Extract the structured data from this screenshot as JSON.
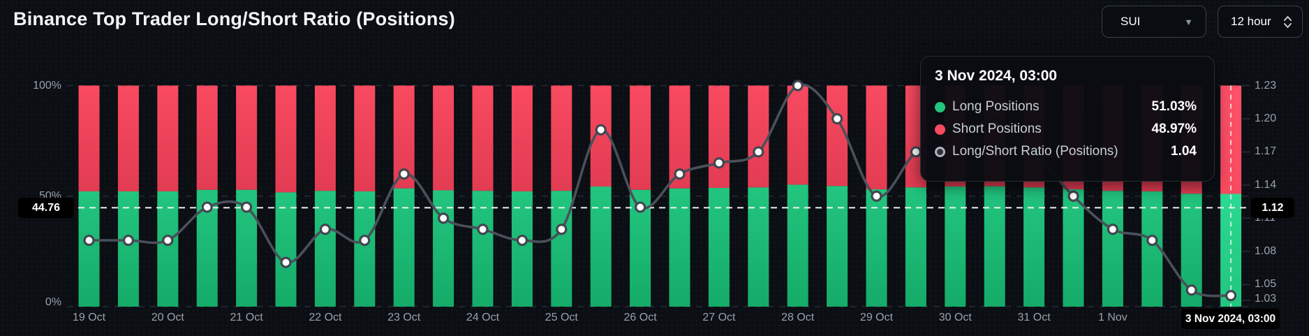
{
  "header": {
    "title": "Binance Top Trader Long/Short Ratio (Positions)",
    "symbol_select": {
      "value": "SUI"
    },
    "interval_select": {
      "value": "12 hour"
    }
  },
  "tooltip": {
    "date": "3 Nov 2024, 03:00",
    "rows": [
      {
        "label": "Long Positions",
        "value": "51.03%",
        "marker_color": "#22c57f",
        "marker_style": "solid",
        "icon": "long-positions-dot-icon"
      },
      {
        "label": "Short Positions",
        "value": "48.97%",
        "marker_color": "#f84a60",
        "marker_style": "solid",
        "icon": "short-positions-dot-icon"
      },
      {
        "label": "Long/Short Ratio (Positions)",
        "value": "1.04",
        "marker_color": "#aeb4bd",
        "marker_style": "ring",
        "icon": "ratio-dot-icon"
      }
    ]
  },
  "colors": {
    "long": "#22c57f",
    "long_bottom": "#15ab69",
    "short": "#f84a60",
    "short_bottom": "#e23c53",
    "ratio_line": "#4a505a",
    "dot_fill": "#ffffff",
    "dot_stroke": "#42474f",
    "axis_text": "#9ba1ac",
    "grid": "#272c34",
    "crosshair": "#eef0f2",
    "pill_bg": "#000000",
    "background": "#0b0e13"
  },
  "chart_data": {
    "type": "stacked-bar+line",
    "title": "Binance Top Trader Long/Short Ratio (Positions)",
    "interval": "12 hour",
    "symbol": "SUI",
    "day_ticks": [
      {
        "i": 0,
        "label": "19 Oct"
      },
      {
        "i": 2,
        "label": "20 Oct"
      },
      {
        "i": 4,
        "label": "21 Oct"
      },
      {
        "i": 6,
        "label": "22 Oct"
      },
      {
        "i": 8,
        "label": "23 Oct"
      },
      {
        "i": 10,
        "label": "24 Oct"
      },
      {
        "i": 12,
        "label": "25 Oct"
      },
      {
        "i": 14,
        "label": "26 Oct"
      },
      {
        "i": 16,
        "label": "27 Oct"
      },
      {
        "i": 18,
        "label": "28 Oct"
      },
      {
        "i": 20,
        "label": "29 Oct"
      },
      {
        "i": 22,
        "label": "30 Oct"
      },
      {
        "i": 24,
        "label": "31 Oct"
      },
      {
        "i": 26,
        "label": "1 Nov"
      }
    ],
    "series": [
      {
        "name": "Long Positions",
        "unit": "%",
        "axis": "left",
        "values": [
          52.15,
          52.15,
          52.15,
          52.83,
          52.83,
          51.69,
          52.38,
          52.15,
          53.49,
          52.61,
          52.38,
          52.15,
          52.38,
          54.34,
          52.83,
          53.49,
          53.7,
          53.92,
          55.16,
          54.55,
          53.05,
          53.92,
          54.34,
          54.44,
          53.92,
          53.05,
          52.38,
          52.15,
          51.1,
          51.03
        ]
      },
      {
        "name": "Short Positions",
        "unit": "%",
        "axis": "left",
        "values": [
          47.85,
          47.85,
          47.85,
          47.17,
          47.17,
          48.31,
          47.62,
          47.85,
          46.51,
          47.39,
          47.62,
          47.85,
          47.62,
          45.66,
          47.17,
          46.51,
          46.3,
          46.08,
          44.84,
          45.45,
          46.95,
          46.08,
          45.66,
          45.56,
          46.08,
          46.95,
          47.62,
          47.85,
          48.9,
          48.97
        ]
      },
      {
        "name": "Long/Short Ratio (Positions)",
        "axis": "right",
        "values": [
          1.09,
          1.09,
          1.09,
          1.12,
          1.12,
          1.07,
          1.1,
          1.09,
          1.15,
          1.11,
          1.1,
          1.09,
          1.1,
          1.19,
          1.12,
          1.15,
          1.16,
          1.17,
          1.23,
          1.2,
          1.13,
          1.17,
          1.19,
          1.195,
          1.17,
          1.13,
          1.1,
          1.09,
          1.045,
          1.04
        ],
        "occluded_by_tooltip_indices": [
          22,
          23,
          24,
          25
        ]
      }
    ],
    "left_axis": {
      "ticks": [
        "0%",
        "50%",
        "100%"
      ],
      "tick_values": [
        0,
        50,
        100
      ],
      "min": 0,
      "max": 100
    },
    "right_axis": {
      "ticks": [
        "1.03",
        "1.05",
        "1.08",
        "1.11",
        "1.14",
        "1.17",
        "1.20",
        "1.23"
      ],
      "tick_values": [
        1.03,
        1.05,
        1.08,
        1.11,
        1.14,
        1.17,
        1.2,
        1.23
      ],
      "min": 1.03,
      "max": 1.23
    },
    "crosshair": {
      "index": 29,
      "left_label": "44.76",
      "right_label": "1.12",
      "x_label": "3 Nov 2024, 03:00",
      "y_percent": 44.76
    },
    "grid": "horizontal-dashed",
    "legend_position": "tooltip-only"
  }
}
